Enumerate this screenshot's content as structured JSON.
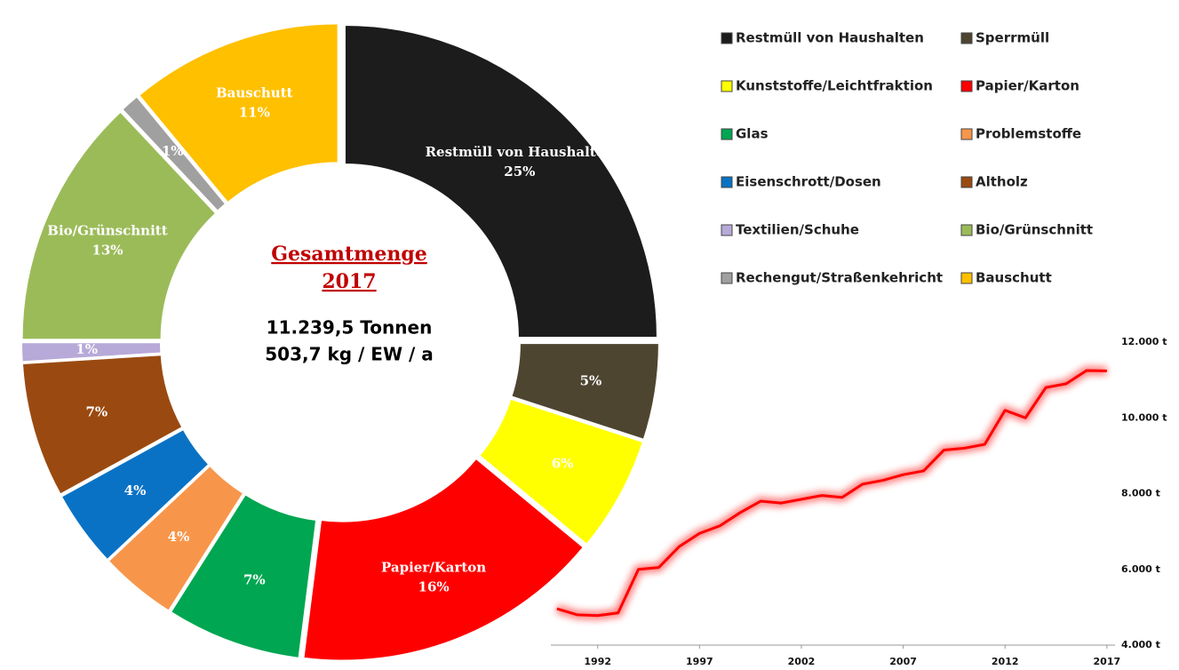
{
  "chart_data": [
    {
      "type": "pie",
      "categories": [
        "Restmüll von Haushalten",
        "Sperrmüll",
        "Kunststoffe/Leichtfraktion",
        "Papier/Karton",
        "Glas",
        "Problemstoffe",
        "Eisenschrott/Dosen",
        "Altholz",
        "Textilien/Schuhe",
        "Bio/Grünschnitt",
        "Rechengut/Straßenkehricht",
        "Bauschutt"
      ],
      "values": [
        25,
        5,
        6,
        16,
        7,
        4,
        4,
        7,
        1,
        13,
        1,
        11
      ],
      "value_labels": [
        "25%",
        "5%",
        "6%",
        "16%",
        "7%",
        "4%",
        "4%",
        "7%",
        "1%",
        "13%",
        "1%",
        "11%"
      ],
      "colors": [
        "#1c1c1c",
        "#4d4530",
        "#ffff00",
        "#ff0000",
        "#00a651",
        "#f7964a",
        "#0a72c4",
        "#9a4a10",
        "#b7a9d8",
        "#9bbb59",
        "#a0a0a0",
        "#ffc000"
      ],
      "named_slices": [
        0,
        3,
        9,
        11
      ],
      "annotations": [
        "Gesamtmenge",
        "2017",
        "11.239,5 Tonnen",
        "503,7 kg / EW / a"
      ],
      "legend": "right"
    },
    {
      "type": "line",
      "x": [
        1990,
        1991,
        1992,
        1993,
        1994,
        1995,
        1996,
        1997,
        1998,
        1999,
        2000,
        2001,
        2002,
        2003,
        2004,
        2005,
        2006,
        2007,
        2008,
        2009,
        2010,
        2011,
        2012,
        2013,
        2014,
        2015,
        2016,
        2017
      ],
      "values": [
        4960,
        4800,
        4780,
        4850,
        6000,
        6050,
        6600,
        6950,
        7150,
        7500,
        7800,
        7750,
        7850,
        7950,
        7900,
        8250,
        8350,
        8500,
        8600,
        9150,
        9200,
        9300,
        10200,
        10000,
        10800,
        10900,
        11250,
        11239.5
      ],
      "color": "#ff0000",
      "xlim": [
        1989.7,
        2017.4
      ],
      "xticks": [
        1992,
        1997,
        2002,
        2007,
        2012,
        2017
      ],
      "ylim": [
        4000,
        12000
      ],
      "yticks": [
        {
          "value": 4000,
          "label": "4.000 t"
        },
        {
          "value": 6000,
          "label": "6.000 t"
        },
        {
          "value": 8000,
          "label": "8.000 t"
        },
        {
          "value": 10000,
          "label": "10.000 t"
        },
        {
          "value": 12000,
          "label": "12.000 t"
        }
      ],
      "grid": false
    }
  ]
}
